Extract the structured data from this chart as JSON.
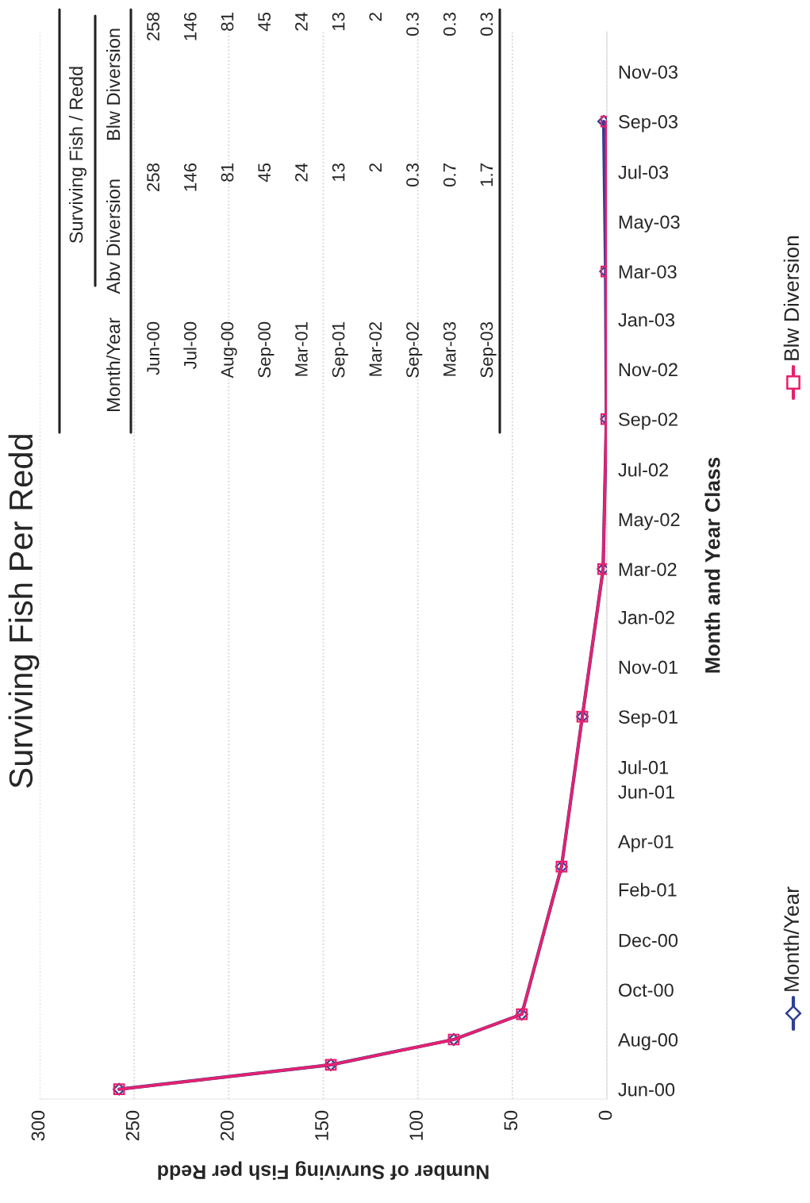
{
  "chart_data": {
    "type": "line",
    "title": "Surviving Fish Per Redd",
    "orientation": "horizontal",
    "xlabel": "Number of Surviving Fish per Redd",
    "ylabel": "Month and Year Class",
    "x": [
      "2000-06",
      "2000-07",
      "2000-08",
      "2000-09",
      "2001-03",
      "2001-09",
      "2002-03",
      "2002-09",
      "2003-03",
      "2003-09"
    ],
    "series": [
      {
        "name": "Month/Year",
        "color": "#2e3f94",
        "marker": "diamond",
        "values": [
          258,
          146,
          81,
          45,
          24,
          13,
          2,
          0.3,
          0.7,
          1.7
        ]
      },
      {
        "name": "Blw Diversion",
        "color": "#e8206e",
        "marker": "square",
        "values": [
          258,
          146,
          81,
          45,
          24,
          13,
          2,
          0.3,
          0.3,
          0.3
        ]
      }
    ],
    "xlim": [
      300,
      0
    ],
    "xticks": [
      0,
      50,
      100,
      150,
      200,
      250,
      300
    ],
    "ylim": [
      "2000-05-20",
      "2003-12-20"
    ],
    "yticks": [
      {
        "value": "2000-06",
        "label": "Jun-00"
      },
      {
        "value": "2000-08",
        "label": "Aug-00"
      },
      {
        "value": "2000-10",
        "label": "Oct-00"
      },
      {
        "value": "2000-12",
        "label": "Dec-00"
      },
      {
        "value": "2001-02",
        "label": "Feb-01"
      },
      {
        "value": "2001-04",
        "label": "Apr-01"
      },
      {
        "value": "2001-06",
        "label": "Jun-01"
      },
      {
        "value": "2001-07",
        "label": "Jul-01"
      },
      {
        "value": "2001-09",
        "label": "Sep-01"
      },
      {
        "value": "2001-11",
        "label": "Nov-01"
      },
      {
        "value": "2002-01",
        "label": "Jan-02"
      },
      {
        "value": "2002-03",
        "label": "Mar-02"
      },
      {
        "value": "2002-05",
        "label": "May-02"
      },
      {
        "value": "2002-07",
        "label": "Jul-02"
      },
      {
        "value": "2002-09",
        "label": "Sep-02"
      },
      {
        "value": "2002-11",
        "label": "Nov-02"
      },
      {
        "value": "2003-01",
        "label": "Jan-03"
      },
      {
        "value": "2003-03",
        "label": "Mar-03"
      },
      {
        "value": "2003-05",
        "label": "May-03"
      },
      {
        "value": "2003-07",
        "label": "Jul-03"
      },
      {
        "value": "2003-09",
        "label": "Sep-03"
      },
      {
        "value": "2003-11",
        "label": "Nov-03"
      }
    ],
    "grid": "x",
    "legend": "right",
    "line_style": "solid",
    "annotations": [
      "Month/Year",
      "Surviving Fish / Redd",
      "Abv Diversion",
      "Blw Diversion",
      "Jun-00",
      "Jul-00",
      "Aug-00",
      "Sep-00",
      "Mar-01",
      "Sep-01",
      "Mar-02",
      "Sep-02",
      "Mar-03",
      "Sep-03",
      "258",
      "146",
      "81",
      "45",
      "24",
      "13",
      "2",
      "0.3",
      "0.7",
      "1.7",
      "258",
      "146",
      "81",
      "45",
      "24",
      "13",
      "2",
      "0.3",
      "0.3",
      "0.3"
    ]
  }
}
